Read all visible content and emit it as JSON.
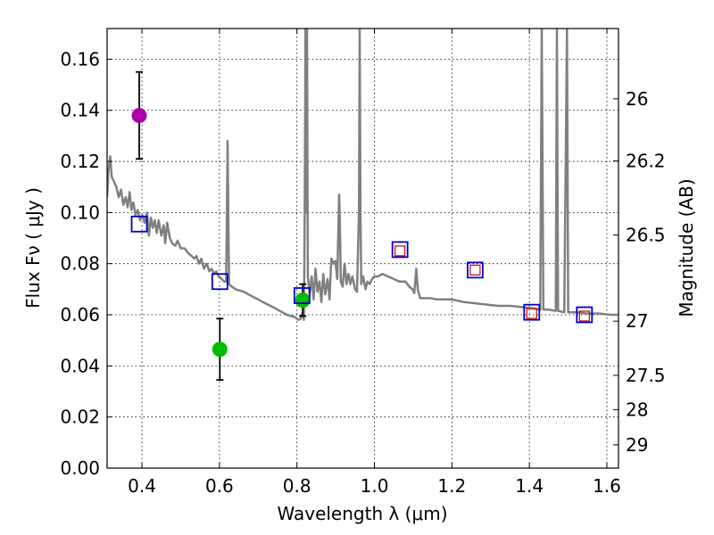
{
  "chart_data": {
    "type": "scatter",
    "xlabel": "Wavelength  λ (μm)",
    "ylabel": "Flux  Fν  ( μJy )",
    "y2label": "Magnitude (AB)",
    "xlim": [
      0.31,
      1.63
    ],
    "ylim": [
      0.0,
      0.172
    ],
    "grid": true,
    "x_ticks": [
      0.4,
      0.6,
      0.8,
      1.0,
      1.2,
      1.4,
      1.6
    ],
    "x_tick_labels": [
      "0.4",
      "0.6",
      "0.8",
      "1.0",
      "1.2",
      "1.4",
      "1.6"
    ],
    "y_ticks": [
      0.0,
      0.02,
      0.04,
      0.06,
      0.08,
      0.1,
      0.12,
      0.14,
      0.16
    ],
    "y_tick_labels": [
      "0.00",
      "0.02",
      "0.04",
      "0.06",
      "0.08",
      "0.10",
      "0.12",
      "0.14",
      "0.16"
    ],
    "y2_ticks": [
      {
        "label": "26",
        "flux": 0.1445
      },
      {
        "label": "26.2",
        "flux": 0.1202
      },
      {
        "label": "26.5",
        "flux": 0.0912
      },
      {
        "label": "27",
        "flux": 0.0575
      },
      {
        "label": "27.5",
        "flux": 0.0363
      },
      {
        "label": "28",
        "flux": 0.0229
      },
      {
        "label": "29",
        "flux": 0.0091
      }
    ],
    "colors": {
      "model": "#808080",
      "blue_square": "#0000cc",
      "red_square": "#cc0000",
      "magenta": "#aa00aa",
      "green": "#00bb00",
      "errorbar": "#000000"
    },
    "series": [
      {
        "name": "observed_magenta",
        "marker": "circle",
        "color": "#aa00aa",
        "points": [
          {
            "x": 0.393,
            "y": 0.138,
            "yerr_low": 0.121,
            "yerr_high": 0.155
          }
        ]
      },
      {
        "name": "observed_green",
        "marker": "circle",
        "color": "#00bb00",
        "points": [
          {
            "x": 0.601,
            "y": 0.0465,
            "yerr_low": 0.0345,
            "yerr_high": 0.0585
          },
          {
            "x": 0.815,
            "y": 0.0657,
            "yerr_low": 0.0595,
            "yerr_high": 0.072
          }
        ]
      },
      {
        "name": "model_blue_squares",
        "marker": "square",
        "color": "#0000cc",
        "points": [
          {
            "x": 0.393,
            "y": 0.0955
          },
          {
            "x": 0.601,
            "y": 0.073
          },
          {
            "x": 0.813,
            "y": 0.0675
          },
          {
            "x": 1.066,
            "y": 0.0855
          },
          {
            "x": 1.26,
            "y": 0.0775
          },
          {
            "x": 1.406,
            "y": 0.061
          },
          {
            "x": 1.542,
            "y": 0.06
          }
        ]
      },
      {
        "name": "model_red_squares",
        "marker": "square-small",
        "color": "#cc0000",
        "points": [
          {
            "x": 1.066,
            "y": 0.085
          },
          {
            "x": 1.26,
            "y": 0.0775
          },
          {
            "x": 1.406,
            "y": 0.0605
          },
          {
            "x": 1.542,
            "y": 0.0595
          }
        ]
      }
    ],
    "model_spectrum": [
      [
        0.31,
        0.106
      ],
      [
        0.314,
        0.117
      ],
      [
        0.318,
        0.122
      ],
      [
        0.322,
        0.114
      ],
      [
        0.328,
        0.112
      ],
      [
        0.334,
        0.11
      ],
      [
        0.34,
        0.106
      ],
      [
        0.346,
        0.109
      ],
      [
        0.352,
        0.103
      ],
      [
        0.358,
        0.106
      ],
      [
        0.363,
        0.102
      ],
      [
        0.368,
        0.108
      ],
      [
        0.373,
        0.101
      ],
      [
        0.378,
        0.104
      ],
      [
        0.383,
        0.099
      ],
      [
        0.389,
        0.101
      ],
      [
        0.395,
        0.097
      ],
      [
        0.401,
        0.099
      ],
      [
        0.407,
        0.096
      ],
      [
        0.413,
        0.1
      ],
      [
        0.418,
        0.091
      ],
      [
        0.423,
        0.098
      ],
      [
        0.428,
        0.094
      ],
      [
        0.433,
        0.097
      ],
      [
        0.438,
        0.092
      ],
      [
        0.443,
        0.097
      ],
      [
        0.45,
        0.091
      ],
      [
        0.456,
        0.095
      ],
      [
        0.46,
        0.088
      ],
      [
        0.465,
        0.096
      ],
      [
        0.472,
        0.09
      ],
      [
        0.478,
        0.088
      ],
      [
        0.486,
        0.087
      ],
      [
        0.492,
        0.089
      ],
      [
        0.5,
        0.086
      ],
      [
        0.51,
        0.086
      ],
      [
        0.52,
        0.084
      ],
      [
        0.528,
        0.083
      ],
      [
        0.535,
        0.082
      ],
      [
        0.541,
        0.083
      ],
      [
        0.547,
        0.08
      ],
      [
        0.553,
        0.082
      ],
      [
        0.56,
        0.078
      ],
      [
        0.567,
        0.08
      ],
      [
        0.574,
        0.077
      ],
      [
        0.58,
        0.078
      ],
      [
        0.586,
        0.076
      ],
      [
        0.592,
        0.077
      ],
      [
        0.598,
        0.075
      ],
      [
        0.606,
        0.074
      ],
      [
        0.612,
        0.073
      ],
      [
        0.617,
        0.073
      ],
      [
        0.619,
        0.094
      ],
      [
        0.621,
        0.128
      ],
      [
        0.623,
        0.095
      ],
      [
        0.625,
        0.072
      ],
      [
        0.632,
        0.071
      ],
      [
        0.642,
        0.07
      ],
      [
        0.652,
        0.0695
      ],
      [
        0.663,
        0.069
      ],
      [
        0.675,
        0.068
      ],
      [
        0.687,
        0.067
      ],
      [
        0.7,
        0.066
      ],
      [
        0.712,
        0.065
      ],
      [
        0.725,
        0.064
      ],
      [
        0.738,
        0.063
      ],
      [
        0.75,
        0.062
      ],
      [
        0.762,
        0.061
      ],
      [
        0.774,
        0.06
      ],
      [
        0.786,
        0.0595
      ],
      [
        0.796,
        0.059
      ],
      [
        0.804,
        0.058
      ],
      [
        0.81,
        0.0585
      ],
      [
        0.815,
        0.061
      ],
      [
        0.818,
        0.058
      ],
      [
        0.82,
        0.1
      ],
      [
        0.822,
        0.172
      ],
      [
        0.824,
        0.1
      ],
      [
        0.826,
        0.172
      ],
      [
        0.828,
        0.075
      ],
      [
        0.833,
        0.068
      ],
      [
        0.838,
        0.075
      ],
      [
        0.843,
        0.066
      ],
      [
        0.848,
        0.078
      ],
      [
        0.853,
        0.069
      ],
      [
        0.858,
        0.073
      ],
      [
        0.863,
        0.065
      ],
      [
        0.868,
        0.076
      ],
      [
        0.873,
        0.068
      ],
      [
        0.879,
        0.074
      ],
      [
        0.884,
        0.066
      ],
      [
        0.889,
        0.082
      ],
      [
        0.894,
        0.08
      ],
      [
        0.899,
        0.081
      ],
      [
        0.904,
        0.074
      ],
      [
        0.907,
        0.095
      ],
      [
        0.909,
        0.107
      ],
      [
        0.911,
        0.095
      ],
      [
        0.913,
        0.073
      ],
      [
        0.918,
        0.071
      ],
      [
        0.923,
        0.08
      ],
      [
        0.928,
        0.072
      ],
      [
        0.933,
        0.076
      ],
      [
        0.938,
        0.072
      ],
      [
        0.943,
        0.075
      ],
      [
        0.95,
        0.07
      ],
      [
        0.955,
        0.069
      ],
      [
        0.96,
        0.1
      ],
      [
        0.962,
        0.172
      ],
      [
        0.964,
        0.1
      ],
      [
        0.966,
        0.072
      ],
      [
        0.971,
        0.075
      ],
      [
        0.977,
        0.07
      ],
      [
        0.982,
        0.073
      ],
      [
        0.988,
        0.072
      ],
      [
        0.994,
        0.074
      ],
      [
        1.0,
        0.075
      ],
      [
        1.01,
        0.075
      ],
      [
        1.02,
        0.076
      ],
      [
        1.035,
        0.075
      ],
      [
        1.05,
        0.074
      ],
      [
        1.065,
        0.073
      ],
      [
        1.08,
        0.073
      ],
      [
        1.09,
        0.071
      ],
      [
        1.098,
        0.07
      ],
      [
        1.103,
        0.0685
      ],
      [
        1.108,
        0.078
      ],
      [
        1.112,
        0.07
      ],
      [
        1.118,
        0.0665
      ],
      [
        1.13,
        0.0665
      ],
      [
        1.145,
        0.0665
      ],
      [
        1.16,
        0.066
      ],
      [
        1.18,
        0.066
      ],
      [
        1.2,
        0.066
      ],
      [
        1.23,
        0.065
      ],
      [
        1.26,
        0.0645
      ],
      [
        1.29,
        0.064
      ],
      [
        1.32,
        0.0635
      ],
      [
        1.35,
        0.0635
      ],
      [
        1.38,
        0.063
      ],
      [
        1.41,
        0.0625
      ],
      [
        1.428,
        0.062
      ],
      [
        1.432,
        0.172
      ],
      [
        1.436,
        0.062
      ],
      [
        1.45,
        0.062
      ],
      [
        1.468,
        0.0615
      ],
      [
        1.471,
        0.172
      ],
      [
        1.474,
        0.0615
      ],
      [
        1.49,
        0.061
      ],
      [
        1.497,
        0.172
      ],
      [
        1.5,
        0.061
      ],
      [
        1.52,
        0.061
      ],
      [
        1.55,
        0.0605
      ],
      [
        1.58,
        0.0605
      ],
      [
        1.61,
        0.06
      ],
      [
        1.63,
        0.06
      ]
    ]
  }
}
